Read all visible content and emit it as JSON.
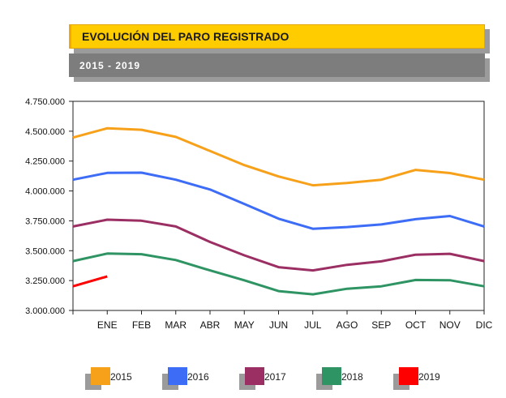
{
  "chart_data": {
    "type": "line",
    "title": "EVOLUCIÓN DEL PARO REGISTRADO",
    "subtitle": "2015 - 2019",
    "categories": [
      "",
      "ENE",
      "FEB",
      "MAR",
      "ABR",
      "MAY",
      "JUN",
      "JUL",
      "AGO",
      "SEP",
      "OCT",
      "NOV",
      "DIC"
    ],
    "y_ticks": [
      "3.000.000",
      "3.250.000",
      "3.500.000",
      "3.750.000",
      "4.000.000",
      "4.250.000",
      "4.500.000",
      "4.750.000"
    ],
    "ylim": [
      3000000,
      4750000
    ],
    "grid": false,
    "legend_position": "bottom",
    "series": [
      {
        "name": "2015",
        "color": "#f7a11a",
        "values": [
          4447000,
          4525000,
          4512000,
          4452000,
          4334000,
          4216000,
          4121000,
          4047000,
          4067000,
          4094000,
          4176000,
          4150000,
          4094000
        ]
      },
      {
        "name": "2016",
        "color": "#3d6cf7",
        "values": [
          4094000,
          4151000,
          4153000,
          4094000,
          4012000,
          3891000,
          3768000,
          3684000,
          3698000,
          3720000,
          3764000,
          3790000,
          3703000
        ]
      },
      {
        "name": "2017",
        "color": "#9b2f63",
        "values": [
          3703000,
          3760000,
          3751000,
          3703000,
          3573000,
          3461000,
          3362000,
          3335000,
          3382000,
          3411000,
          3467000,
          3474000,
          3413000
        ]
      },
      {
        "name": "2018",
        "color": "#2f9463",
        "values": [
          3413000,
          3476000,
          3471000,
          3422000,
          3335000,
          3252000,
          3162000,
          3135000,
          3182000,
          3202000,
          3255000,
          3253000,
          3202000
        ]
      },
      {
        "name": "2019",
        "color": "#ff0000",
        "values": [
          3202000,
          3285000,
          null,
          null,
          null,
          null,
          null,
          null,
          null,
          null,
          null,
          null,
          null
        ]
      }
    ]
  }
}
